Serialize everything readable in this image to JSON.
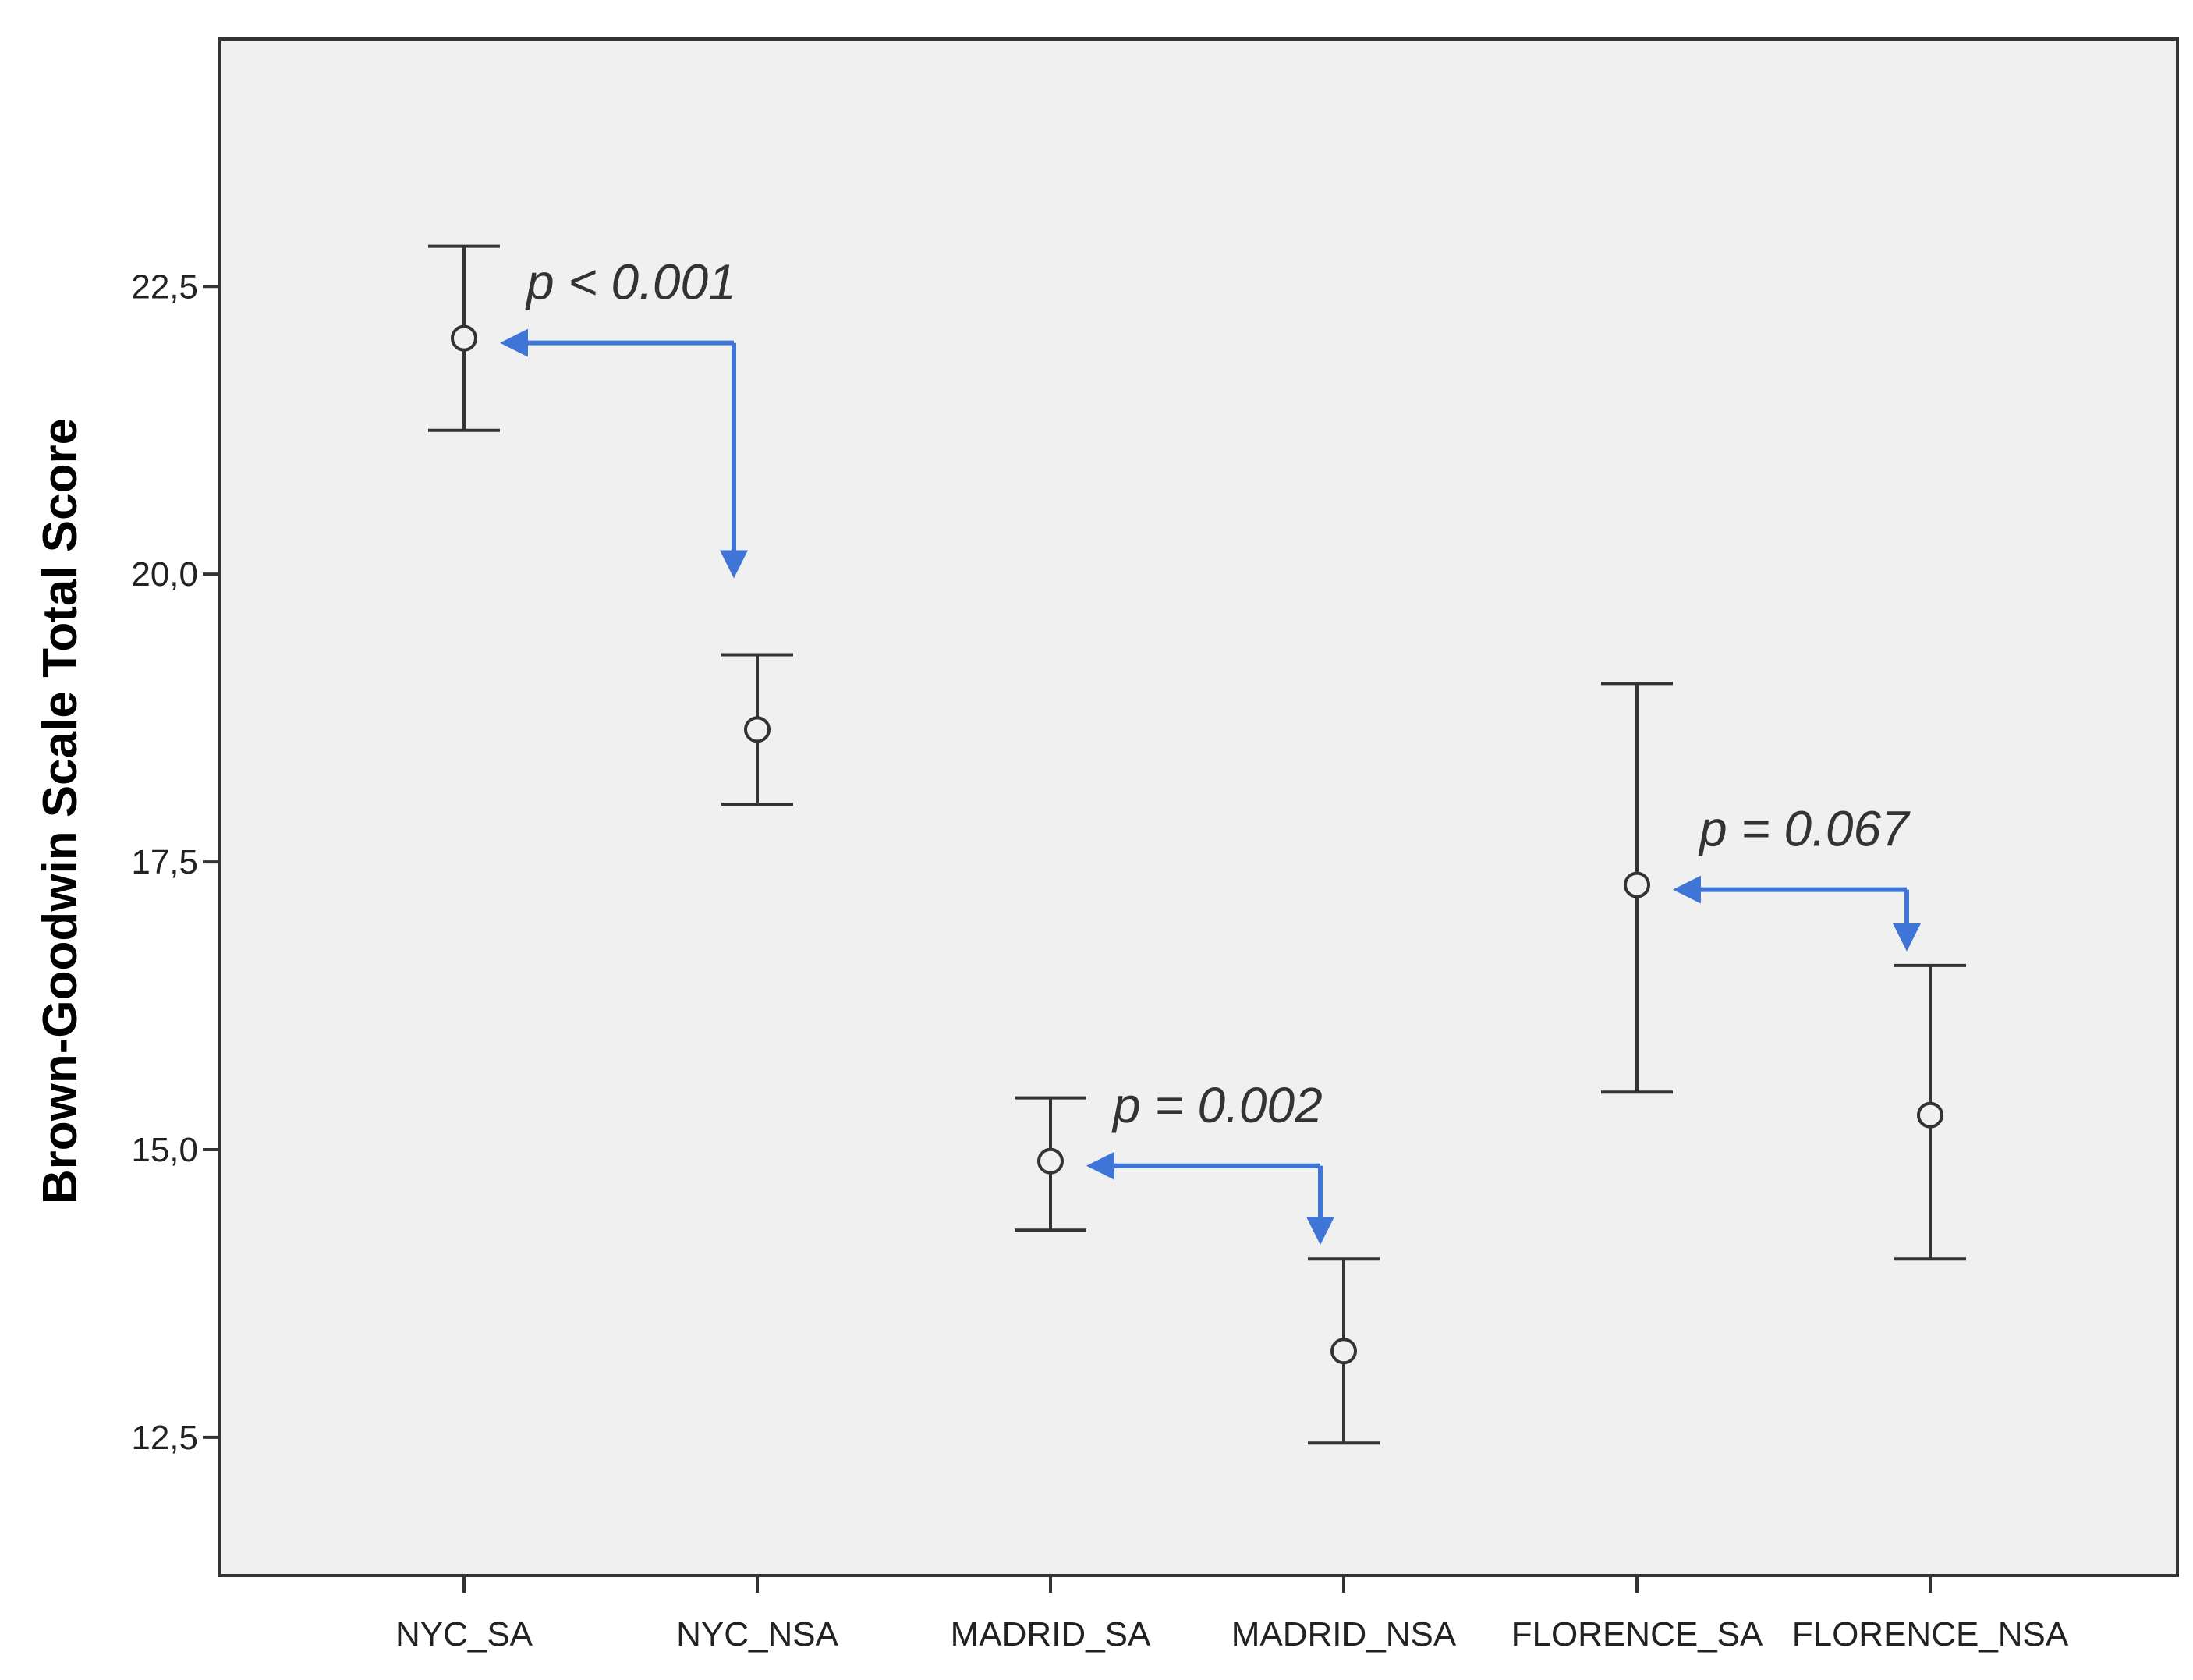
{
  "chart_data": {
    "type": "errorbar",
    "ylabel": "Brown-Goodwin Scale Total Score",
    "xlabel": "",
    "ylim": [
      11.3,
      24.65
    ],
    "yticks": [
      12.5,
      15.0,
      17.5,
      20.0,
      22.5
    ],
    "ytick_labels": [
      "12,5",
      "15,0",
      "17,5",
      "20,0",
      "22,5"
    ],
    "grid": false,
    "categories": [
      "NYC_SA",
      "NYC_NSA",
      "MADRID_SA",
      "MADRID_NSA",
      "FLORENCE_SA",
      "FLORENCE_NSA"
    ],
    "series": [
      {
        "mean": [
          22.05,
          18.65,
          14.9,
          13.25,
          17.3,
          15.3
        ],
        "lower": [
          21.25,
          18.0,
          14.3,
          12.45,
          15.5,
          14.05
        ],
        "upper": [
          22.85,
          19.3,
          15.45,
          14.05,
          19.05,
          16.6
        ]
      }
    ],
    "annotations": [
      {
        "text": "p < 0.001",
        "from": "NYC_NSA",
        "to": "NYC_SA"
      },
      {
        "text": "p = 0.002",
        "from": "MADRID_NSA",
        "to": "MADRID_SA"
      },
      {
        "text": "p = 0.067",
        "from": "FLORENCE_NSA",
        "to": "FLORENCE_SA"
      }
    ],
    "colors": {
      "plot_bg": "#f0f0f0",
      "marks": "#333333",
      "arrow": "#3e75d6",
      "axis": "#333333"
    }
  }
}
